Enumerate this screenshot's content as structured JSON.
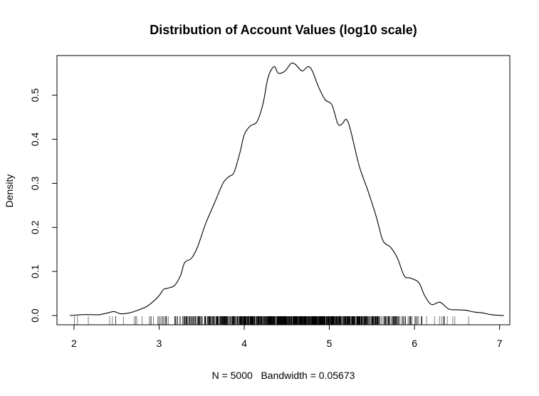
{
  "chart_data": {
    "type": "density",
    "title": "Distribution of Account Values (log10 scale)",
    "xlabel": "N = 5000   Bandwidth = 0.05673",
    "ylabel": "Density",
    "xlim": [
      1.8,
      7.12
    ],
    "ylim": [
      -0.021,
      0.59
    ],
    "x_ticks": [
      2,
      3,
      4,
      5,
      6,
      7
    ],
    "y_ticks": [
      0.0,
      0.1,
      0.2,
      0.3,
      0.4,
      0.5
    ],
    "y_tick_labels": [
      "0.0",
      "0.1",
      "0.2",
      "0.3",
      "0.4",
      "0.5"
    ],
    "grid": false,
    "legend": "none",
    "line_color": "#000000",
    "n": 5000,
    "bandwidth": 0.05673,
    "series": [
      {
        "x": [
          1.95,
          2.1,
          2.2,
          2.3,
          2.4,
          2.47,
          2.55,
          2.65,
          2.75,
          2.85,
          2.92,
          3.0,
          3.05,
          3.1,
          3.18,
          3.25,
          3.3,
          3.38,
          3.45,
          3.55,
          3.65,
          3.75,
          3.82,
          3.88,
          3.95,
          4.0,
          4.07,
          4.15,
          4.22,
          4.28,
          4.35,
          4.4,
          4.48,
          4.55,
          4.6,
          4.68,
          4.75,
          4.8,
          4.87,
          4.95,
          5.03,
          5.1,
          5.15,
          5.2,
          5.25,
          5.35,
          5.45,
          5.55,
          5.63,
          5.72,
          5.8,
          5.88,
          5.95,
          6.05,
          6.12,
          6.2,
          6.3,
          6.4,
          6.5,
          6.6,
          6.7,
          6.8,
          6.9,
          7.05
        ],
        "y": [
          0.0,
          0.002,
          0.002,
          0.002,
          0.006,
          0.009,
          0.004,
          0.006,
          0.012,
          0.02,
          0.03,
          0.045,
          0.059,
          0.062,
          0.068,
          0.09,
          0.12,
          0.13,
          0.155,
          0.21,
          0.255,
          0.3,
          0.315,
          0.325,
          0.37,
          0.41,
          0.43,
          0.44,
          0.48,
          0.54,
          0.565,
          0.55,
          0.555,
          0.572,
          0.57,
          0.555,
          0.565,
          0.555,
          0.52,
          0.49,
          0.478,
          0.435,
          0.435,
          0.445,
          0.42,
          0.34,
          0.285,
          0.225,
          0.17,
          0.155,
          0.13,
          0.09,
          0.085,
          0.075,
          0.045,
          0.025,
          0.03,
          0.015,
          0.013,
          0.012,
          0.008,
          0.006,
          0.002,
          0.0
        ]
      }
    ]
  }
}
